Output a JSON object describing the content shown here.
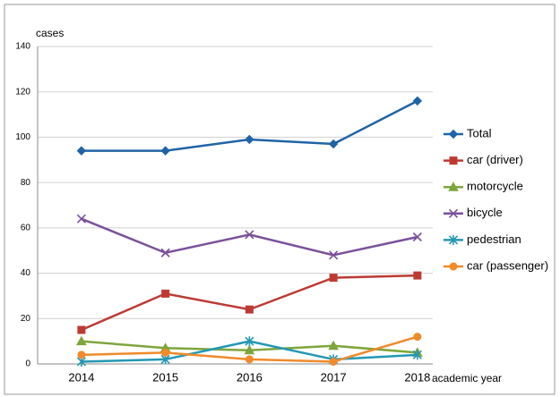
{
  "chart_data": {
    "type": "line",
    "y_label": "cases",
    "x_label": "academic year",
    "categories": [
      "2014",
      "2015",
      "2016",
      "2017",
      "2018"
    ],
    "series": [
      {
        "name": "Total",
        "color": "#1f64a6",
        "marker": "diamond",
        "values": [
          94,
          94,
          99,
          97,
          116
        ]
      },
      {
        "name": "car (driver)",
        "color": "#bd3a33",
        "marker": "square",
        "values": [
          15,
          31,
          24,
          38,
          39
        ]
      },
      {
        "name": "motorcycle",
        "color": "#7ea53b",
        "marker": "triangle",
        "values": [
          10,
          7,
          6,
          8,
          5
        ]
      },
      {
        "name": "bicycle",
        "color": "#7a509b",
        "marker": "x",
        "values": [
          64,
          49,
          57,
          48,
          56
        ]
      },
      {
        "name": "pedestrian",
        "color": "#2398b3",
        "marker": "star",
        "values": [
          1,
          2,
          10,
          2,
          4
        ]
      },
      {
        "name": "car (passenger)",
        "color": "#f08a2b",
        "marker": "circle",
        "values": [
          4,
          5,
          2,
          1,
          12
        ]
      }
    ],
    "ylim": [
      0,
      140
    ],
    "yticks": [
      0,
      20,
      40,
      60,
      80,
      100,
      120,
      140
    ],
    "grid": true,
    "legend": "right"
  }
}
